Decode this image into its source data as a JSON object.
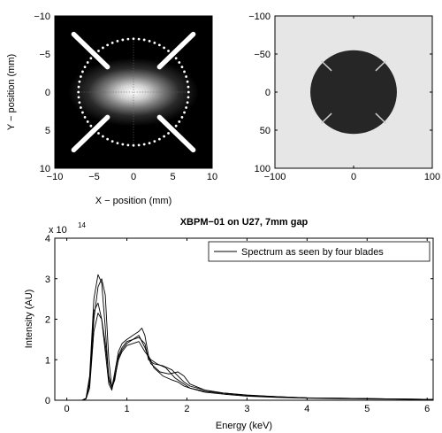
{
  "chart_data": [
    {
      "type": "heatmap",
      "panel": "beam-profile",
      "xlabel": "X − position (mm)",
      "ylabel": "Y − position (mm)",
      "xlim": [
        -10,
        10
      ],
      "ylim": [
        -10,
        10
      ],
      "y_axis_reversed": true,
      "x_ticks": [
        "−10",
        "−5",
        "0",
        "5",
        "10"
      ],
      "x_tick_values": [
        -10,
        -5,
        0,
        5,
        10
      ],
      "y_ticks": [
        "−10",
        "−5",
        "0",
        "5",
        "10"
      ],
      "y_tick_values": [
        -10,
        -5,
        0,
        5,
        10
      ],
      "beam_sigma_mm": [
        3.2,
        1.6
      ],
      "aperture_radius_mm": 7,
      "aperture_dots": 64,
      "blades": [
        {
          "x1": -7.6,
          "y1": -7.6,
          "x2": -3.3,
          "y2": -3.3
        },
        {
          "x1": 7.6,
          "y1": -7.6,
          "x2": 3.3,
          "y2": -3.3
        },
        {
          "x1": -7.6,
          "y1": 7.6,
          "x2": -3.3,
          "y2": 3.3
        },
        {
          "x1": 7.6,
          "y1": 7.6,
          "x2": 3.3,
          "y2": 3.3
        }
      ],
      "colormap": "gray",
      "grid": "center crosshair (dotted)"
    },
    {
      "type": "heatmap",
      "panel": "pixel-mask",
      "xlim": [
        -100,
        100
      ],
      "ylim": [
        -100,
        100
      ],
      "y_axis_reversed": true,
      "x_ticks": [
        "−100",
        "0",
        "100"
      ],
      "x_tick_values": [
        -100,
        0,
        100
      ],
      "y_ticks": [
        "−100",
        "−50",
        "0",
        "50",
        "100"
      ],
      "y_tick_values": [
        -100,
        -50,
        0,
        50,
        100
      ],
      "disk_radius": 55,
      "background_color": "#e6e6e6",
      "disk_color": "#262626",
      "slit_color": "#cccccc",
      "slits": [
        {
          "x1": -41,
          "y1": -41,
          "x2": -28,
          "y2": -28
        },
        {
          "x1": 41,
          "y1": -41,
          "x2": 28,
          "y2": -28
        },
        {
          "x1": -41,
          "y1": 41,
          "x2": -28,
          "y2": 28
        },
        {
          "x1": 41,
          "y1": 41,
          "x2": 28,
          "y2": 28
        }
      ]
    },
    {
      "type": "line",
      "panel": "spectrum",
      "title": "XBPM−01 on U27, 7mm gap",
      "xlabel": "Energy (keV)",
      "ylabel": "Intensity (AU)",
      "y_multiplier": "x 10",
      "y_multiplier_exponent": "14",
      "xlim": [
        -0.2,
        6.1
      ],
      "ylim": [
        0,
        4
      ],
      "x_ticks": [
        "0",
        "1",
        "2",
        "3",
        "4",
        "5",
        "6"
      ],
      "x_tick_values": [
        0,
        1,
        2,
        3,
        4,
        5,
        6
      ],
      "y_ticks": [
        "0",
        "1",
        "2",
        "3",
        "4"
      ],
      "y_tick_values": [
        0,
        1,
        2,
        3,
        4
      ],
      "legend_label": "Spectrum as seen by four blades",
      "legend_position": "top-right",
      "line_color": "#000000",
      "series": [
        {
          "x": [
            0.25,
            0.32,
            0.38,
            0.45,
            0.52,
            0.58,
            0.64,
            0.7,
            0.75,
            0.8,
            0.86,
            0.92,
            1.0,
            1.1,
            1.2,
            1.25,
            1.3,
            1.36,
            1.45,
            1.6,
            1.75,
            1.85,
            1.95,
            2.05,
            2.3,
            2.6,
            3.0,
            3.5,
            4.0,
            5.0,
            6.1
          ],
          "values": [
            0.0,
            0.05,
            0.6,
            2.5,
            3.1,
            2.9,
            1.8,
            0.5,
            0.3,
            0.7,
            1.2,
            1.4,
            1.5,
            1.6,
            1.7,
            1.78,
            1.6,
            1.1,
            0.8,
            0.6,
            0.5,
            0.45,
            0.35,
            0.3,
            0.22,
            0.17,
            0.12,
            0.08,
            0.06,
            0.04,
            0.02
          ]
        },
        {
          "x": [
            0.25,
            0.32,
            0.38,
            0.45,
            0.52,
            0.58,
            0.64,
            0.7,
            0.75,
            0.8,
            0.86,
            0.92,
            1.0,
            1.1,
            1.2,
            1.3,
            1.36,
            1.45,
            1.6,
            1.75,
            1.85,
            1.95,
            2.05,
            2.3,
            2.6,
            3.0,
            3.5,
            4.0,
            5.0,
            6.1
          ],
          "values": [
            0.0,
            0.04,
            0.4,
            2.0,
            2.8,
            3.0,
            2.6,
            1.0,
            0.3,
            0.5,
            1.1,
            1.3,
            1.45,
            1.5,
            1.55,
            1.4,
            1.0,
            0.9,
            0.85,
            0.75,
            0.6,
            0.45,
            0.35,
            0.25,
            0.18,
            0.12,
            0.09,
            0.06,
            0.04,
            0.02
          ]
        },
        {
          "x": [
            0.25,
            0.32,
            0.38,
            0.45,
            0.52,
            0.58,
            0.64,
            0.7,
            0.75,
            0.8,
            0.86,
            0.92,
            1.0,
            1.1,
            1.2,
            1.3,
            1.4,
            1.55,
            1.7,
            1.85,
            1.95,
            2.05,
            2.3,
            2.6,
            3.0,
            3.5,
            4.0,
            5.0,
            6.1
          ],
          "values": [
            0.0,
            0.04,
            0.5,
            2.2,
            2.4,
            2.0,
            1.2,
            0.4,
            0.25,
            0.6,
            1.05,
            1.25,
            1.4,
            1.5,
            1.6,
            1.3,
            0.9,
            0.7,
            0.65,
            0.7,
            0.6,
            0.4,
            0.25,
            0.18,
            0.13,
            0.09,
            0.06,
            0.04,
            0.02
          ]
        },
        {
          "x": [
            0.25,
            0.32,
            0.38,
            0.45,
            0.52,
            0.58,
            0.64,
            0.7,
            0.75,
            0.8,
            0.86,
            0.92,
            1.0,
            1.1,
            1.2,
            1.3,
            1.4,
            1.5,
            1.65,
            1.8,
            1.95,
            2.05,
            2.3,
            2.6,
            3.0,
            3.5,
            4.0,
            5.0,
            6.1
          ],
          "values": [
            0.0,
            0.03,
            0.3,
            1.7,
            2.15,
            2.0,
            1.4,
            0.6,
            0.3,
            0.55,
            1.0,
            1.2,
            1.35,
            1.4,
            1.45,
            1.2,
            1.0,
            0.9,
            0.8,
            0.55,
            0.4,
            0.3,
            0.2,
            0.15,
            0.1,
            0.07,
            0.05,
            0.03,
            0.02
          ]
        }
      ]
    }
  ]
}
